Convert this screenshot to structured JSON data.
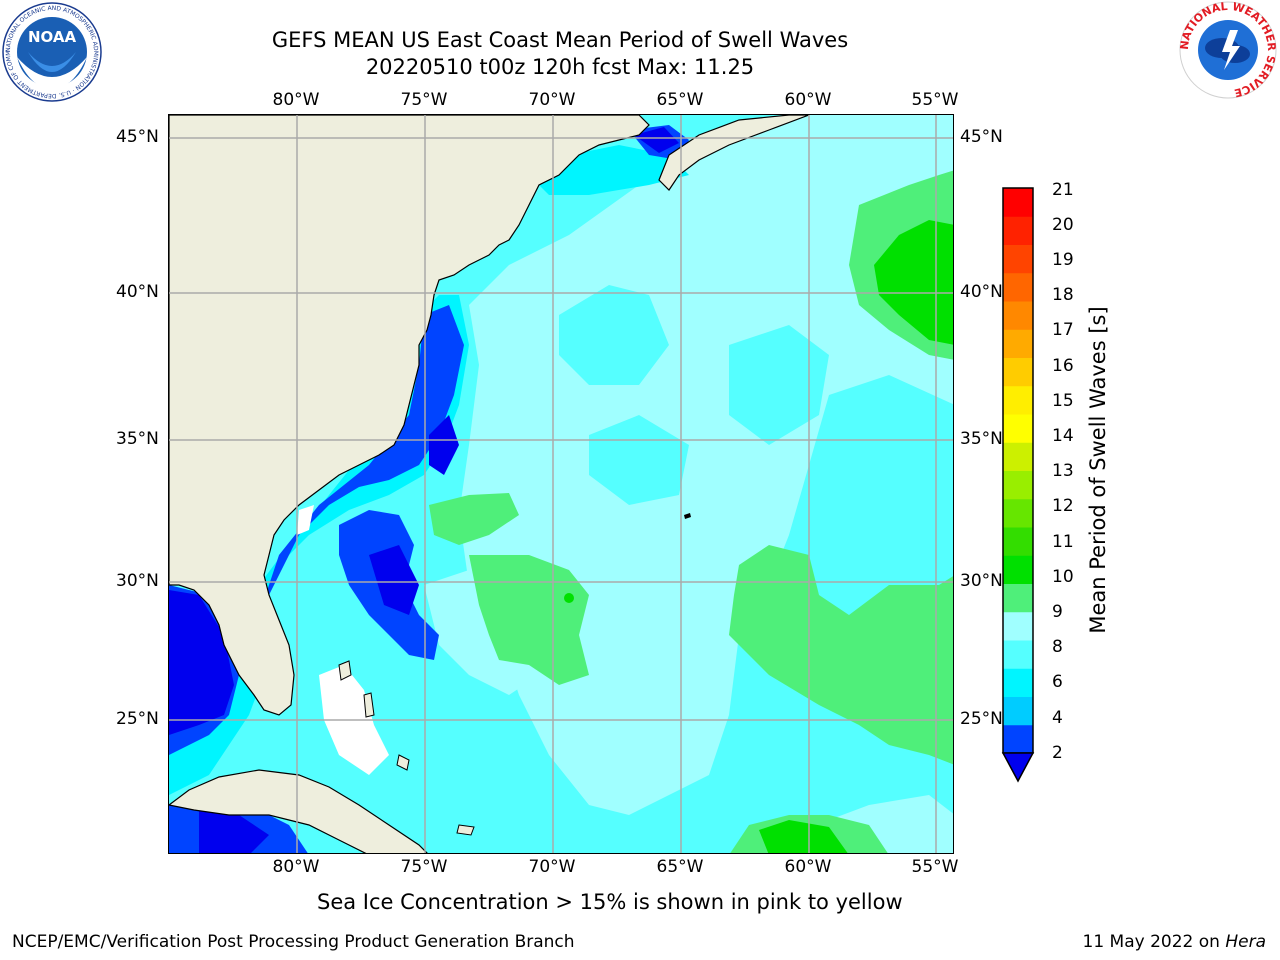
{
  "title_line1": "GEFS MEAN US East Coast Mean Period of Swell Waves",
  "title_line2": "20220510 t00z 120h fcst   Max: 11.25",
  "lon_labels": [
    "80°W",
    "75°W",
    "70°W",
    "65°W",
    "60°W",
    "55°W"
  ],
  "lat_labels": [
    "45°N",
    "40°N",
    "35°N",
    "30°N",
    "25°N"
  ],
  "colorbar": {
    "label": "Mean Period of Swell Waves [s]",
    "ticks": [
      "21",
      "20",
      "19",
      "18",
      "17",
      "16",
      "15",
      "14",
      "13",
      "12",
      "11",
      "10",
      "9",
      "8",
      "6",
      "4",
      "2"
    ],
    "colors": [
      "#0044ff",
      "#00ccff",
      "#00f5ff",
      "#55ffff",
      "#a0ffff",
      "#4fef7a",
      "#00e000",
      "#33dd00",
      "#66e600",
      "#99ee00",
      "#ccf000",
      "#ffff00",
      "#ffee00",
      "#ffcc00",
      "#ffaa00",
      "#ff8800",
      "#ff6600",
      "#ff4400",
      "#ff2200",
      "#ff0000"
    ],
    "extend_color": "#0000ee"
  },
  "map": {
    "extent_lon": [
      -85,
      -54
    ],
    "extent_lat": [
      20.5,
      45.8
    ],
    "land_color": "#eeeedd",
    "grid_color": "#aaaaaa"
  },
  "note": "Sea Ice Concentration > 15% is shown in pink to yellow",
  "footer": {
    "left": "NCEP/EMC/Verification Post Processing Product Generation Branch",
    "right_prefix": "11 May 2022 on ",
    "right_machine": "Hera"
  },
  "logos": {
    "noaa_text": "NOAA",
    "noaa_ring": "NATIONAL OCEANIC AND ATMOSPHERIC ADMINISTRATION · U.S. DEPARTMENT OF COMMERCE",
    "nws_ring": "NATIONAL WEATHER SERVICE"
  }
}
